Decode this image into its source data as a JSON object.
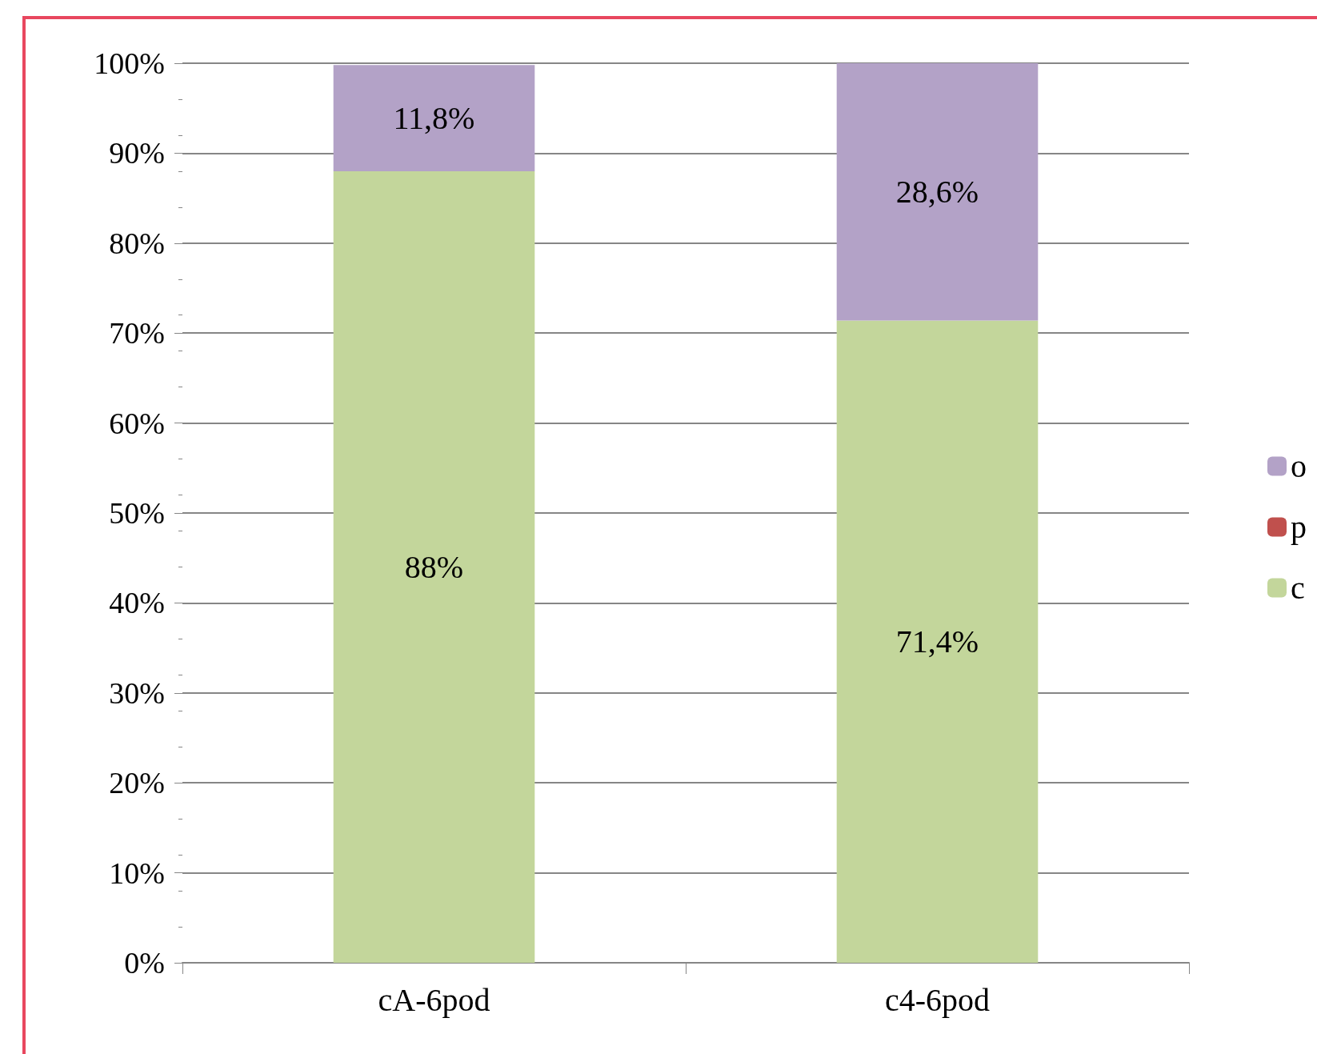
{
  "chart_data": {
    "type": "bar",
    "stacked": true,
    "categories": [
      "cA-6pod",
      "c4-6pod"
    ],
    "series": [
      {
        "name": "c",
        "color": "#c3d69b",
        "values": [
          88,
          71.4
        ],
        "value_labels": [
          "88%",
          "71,4%"
        ]
      },
      {
        "name": "p",
        "color": "#c0504d",
        "values": [
          0,
          0
        ],
        "value_labels": [
          null,
          null
        ]
      },
      {
        "name": "o",
        "color": "#b3a2c7",
        "values": [
          11.8,
          28.6
        ],
        "value_labels": [
          "11,8%",
          "28,6%"
        ]
      }
    ],
    "ylim": [
      0,
      100
    ],
    "yticks": [
      {
        "value": 0,
        "label": "0%"
      },
      {
        "value": 10,
        "label": "10%"
      },
      {
        "value": 20,
        "label": "20%"
      },
      {
        "value": 30,
        "label": "30%"
      },
      {
        "value": 40,
        "label": "40%"
      },
      {
        "value": 50,
        "label": "50%"
      },
      {
        "value": 60,
        "label": "60%"
      },
      {
        "value": 70,
        "label": "70%"
      },
      {
        "value": 80,
        "label": "80%"
      },
      {
        "value": 90,
        "label": "90%"
      },
      {
        "value": 100,
        "label": "100%"
      }
    ],
    "grid": "y",
    "legend": "right"
  }
}
